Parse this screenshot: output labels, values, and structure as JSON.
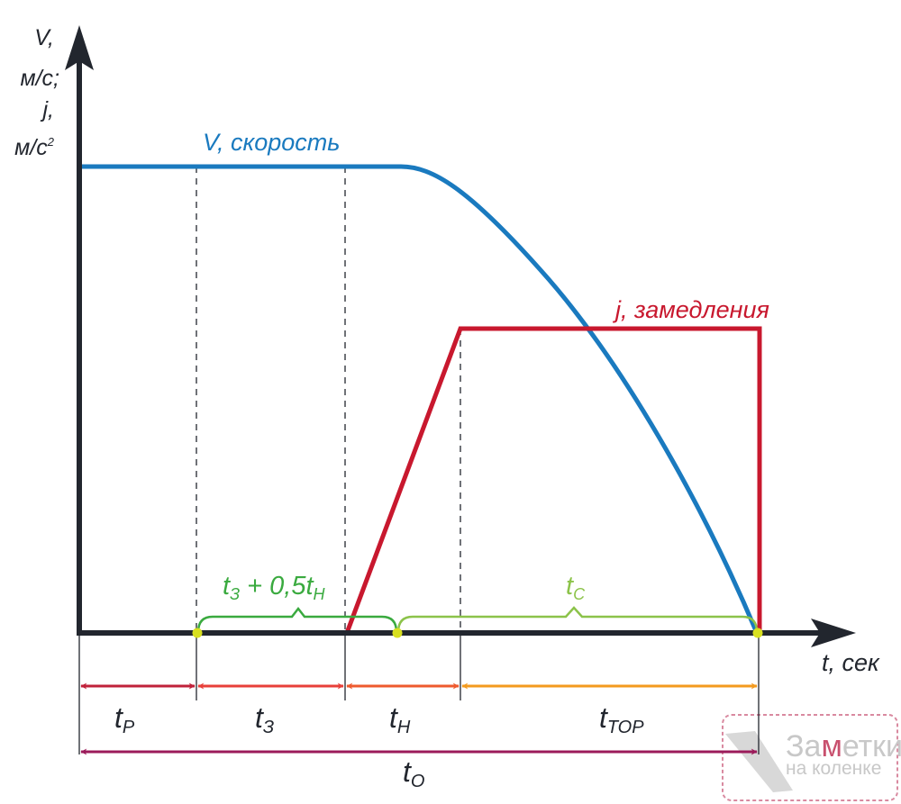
{
  "axes": {
    "y_label_lines": [
      "V,",
      "м/с;",
      "j,",
      "м/с"
    ],
    "y_label_sup": "2",
    "x_label": "t, сек"
  },
  "curves": {
    "velocity_label": "V, скорость",
    "decel_label": "j, замедления"
  },
  "braces": {
    "left": {
      "main": "t",
      "sub1": "З",
      "mid": " + 0,5t",
      "sub2": "Н"
    },
    "right": {
      "main": "t",
      "sub": "С"
    }
  },
  "intervals": [
    {
      "main": "t",
      "sub": "Р"
    },
    {
      "main": "t",
      "sub": "З"
    },
    {
      "main": "t",
      "sub": "Н"
    },
    {
      "main": "t",
      "sub": "ТОР"
    }
  ],
  "total": {
    "main": "t",
    "sub": "О"
  },
  "watermark": {
    "line1a": "За",
    "line1b": "м",
    "line1c": "етки",
    "line2": "на коленке"
  },
  "colors": {
    "axis": "#22262e",
    "velocity": "#1a7abf",
    "decel": "#c8182e",
    "brace_left": "#3aaa3f",
    "brace_right": "#8cc34a",
    "interval_p": "#c0213a",
    "interval_z": "#e8403a",
    "interval_n": "#ee5a2e",
    "interval_tor": "#f39a1e",
    "total": "#9b1b5a",
    "dot": "#d8e020"
  }
}
